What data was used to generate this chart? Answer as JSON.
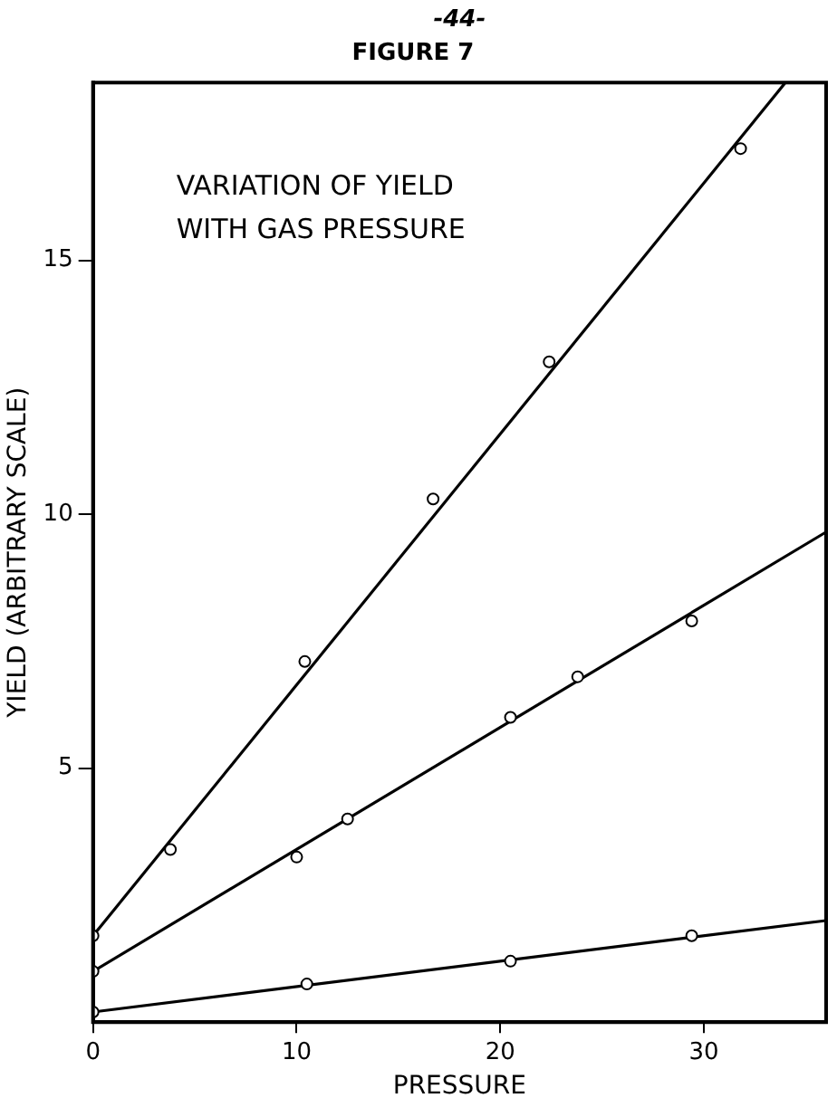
{
  "chart_data": {
    "type": "scatter",
    "title": "FIGURE 7",
    "xlabel": "PRESSURE",
    "ylabel": "YIELD (ARBITRARY SCALE)",
    "annotations": [
      "-44-",
      "VARIATION OF YIELD\nWITH GAS PRESSURE"
    ],
    "xlim": [
      0,
      36
    ],
    "xticks": [
      0,
      10,
      20,
      30
    ],
    "ylim": [
      0,
      18.5
    ],
    "yticks": [
      5,
      10,
      15
    ],
    "grid": false,
    "legend": false,
    "series": [
      {
        "color": "#000000",
        "marker": "circle",
        "x": [
          0,
          3.8,
          10.4,
          16.7,
          22.4,
          31.8
        ],
        "values": [
          1.7,
          3.4,
          7.1,
          10.3,
          13.0,
          17.2
        ]
      },
      {
        "color": "#000000",
        "marker": "circle",
        "x": [
          0,
          10.0,
          12.5,
          20.5,
          23.8,
          29.4
        ],
        "values": [
          1.0,
          3.25,
          4.0,
          6.0,
          6.8,
          7.9
        ]
      },
      {
        "color": "#000000",
        "marker": "circle",
        "x": [
          0,
          10.5,
          20.5,
          29.4
        ],
        "values": [
          0.2,
          0.75,
          1.2,
          1.7
        ]
      },
      {
        "type": "line",
        "color": "#000000",
        "marker": "none",
        "x": [
          0,
          34.0
        ],
        "values": [
          1.7,
          18.5
        ]
      },
      {
        "type": "line",
        "color": "#000000",
        "marker": "none",
        "x": [
          0,
          36
        ],
        "values": [
          1.0,
          9.65
        ]
      },
      {
        "type": "line",
        "color": "#000000",
        "marker": "none",
        "x": [
          0,
          36
        ],
        "values": [
          0.2,
          2.0
        ]
      }
    ]
  }
}
